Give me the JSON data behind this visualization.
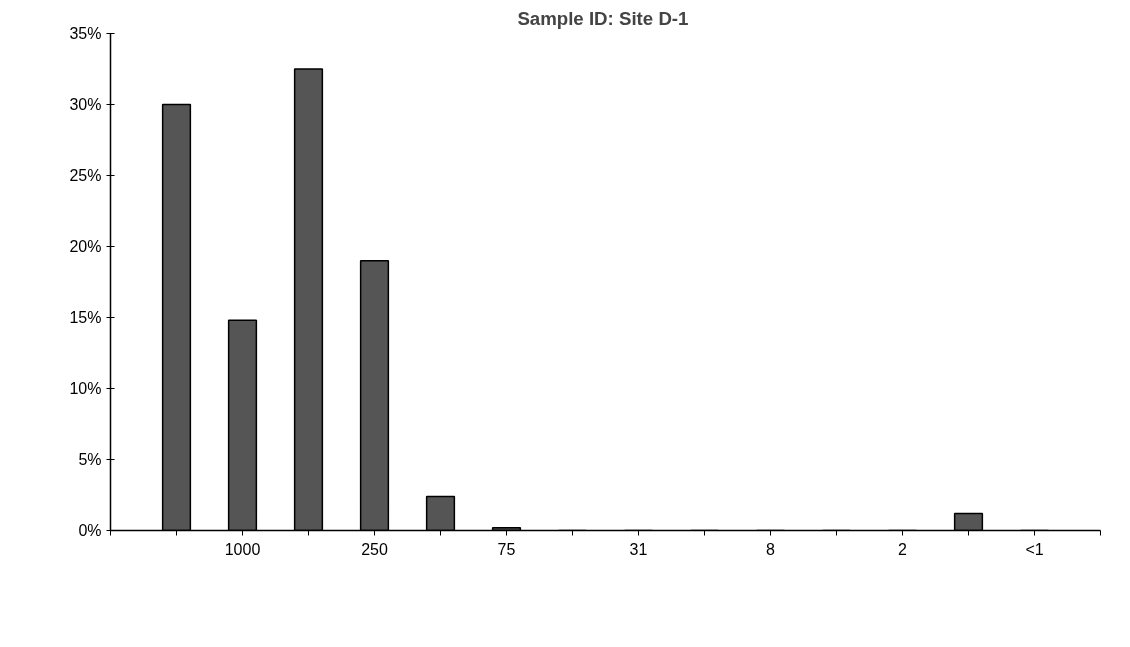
{
  "chart_data": {
    "type": "bar",
    "title": "Sample ID:  Site D-1",
    "categories": [
      null,
      "1000",
      null,
      "250",
      null,
      "75",
      null,
      "31",
      null,
      "8",
      null,
      "2",
      null,
      "<1"
    ],
    "values": [
      30.0,
      14.8,
      32.5,
      19.0,
      2.4,
      0.2,
      0,
      0,
      0,
      0,
      0,
      0,
      1.2,
      0
    ],
    "color": "#555555",
    "ylim": [
      0,
      35
    ],
    "yticks": [
      {
        "value": 0,
        "label": "0%"
      },
      {
        "value": 5,
        "label": "5%"
      },
      {
        "value": 10,
        "label": "10%"
      },
      {
        "value": 15,
        "label": "15%"
      },
      {
        "value": 20,
        "label": "20%"
      },
      {
        "value": 25,
        "label": "25%"
      },
      {
        "value": 30,
        "label": "30%"
      },
      {
        "value": 35,
        "label": "35%"
      }
    ],
    "grid": false
  }
}
